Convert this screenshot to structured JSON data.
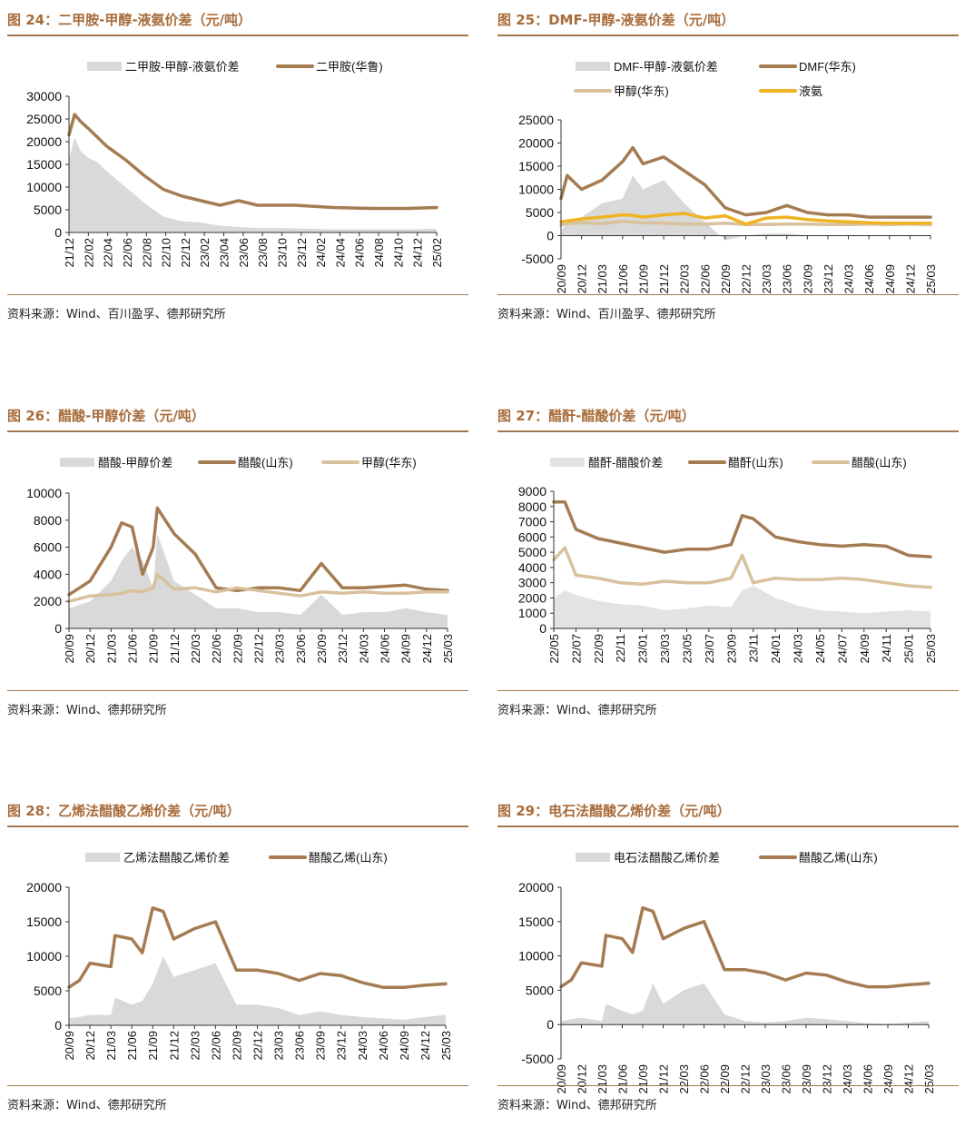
{
  "colors": {
    "title": "#a86c3a",
    "rule": "#a0774f",
    "area": "#d9d9d9",
    "primary": "#a57c52",
    "secondary": "#d8c19c",
    "ammonia": "#f0b323"
  },
  "figures": [
    {
      "title": "图 24：二甲胺-甲醇-液氨价差（元/吨）",
      "source": "资料来源：Wind、百川盈孚、德邦研究所",
      "chart_data": {
        "type": "line",
        "y_ticks": [
          "30000",
          "25000",
          "20000",
          "15000",
          "10000",
          "5000",
          "0"
        ],
        "ylim": [
          0,
          30000
        ],
        "x_ticks": [
          "21/12",
          "22/02",
          "22/04",
          "22/06",
          "22/08",
          "22/10",
          "22/12",
          "23/02",
          "23/04",
          "23/06",
          "23/08",
          "23/10",
          "23/12",
          "24/02",
          "24/04",
          "24/06",
          "24/08",
          "24/10",
          "24/12",
          "25/02"
        ],
        "x": [
          0,
          0.3,
          0.6,
          1,
          1.5,
          2,
          3,
          4,
          5,
          6,
          7,
          8,
          9,
          10,
          11,
          12,
          14,
          16,
          18,
          19.5
        ],
        "series": [
          {
            "name": "二甲胺-甲醇-液氨价差",
            "kind": "area",
            "color": "#d9d9d9",
            "values": [
              16000,
              21000,
              18000,
              16500,
              15500,
              13500,
              10000,
              6500,
              3500,
              2500,
              2200,
              1500,
              1200,
              1000,
              1000,
              900,
              700,
              700,
              700,
              800
            ]
          },
          {
            "name": "二甲胺(华鲁)",
            "kind": "line",
            "color": "#a57c52",
            "values": [
              21500,
              26000,
              24500,
              23000,
              21000,
              19000,
              16000,
              12500,
              9500,
              8000,
              7000,
              6000,
              7000,
              6000,
              6000,
              6000,
              5500,
              5300,
              5300,
              5500
            ]
          }
        ]
      }
    },
    {
      "title": "图 25：DMF-甲醇-液氨价差（元/吨）",
      "source": "资料来源：Wind、百川盈孚、德邦研究所",
      "chart_data": {
        "type": "line",
        "y_ticks": [
          "25000",
          "20000",
          "15000",
          "10000",
          "5000",
          "0",
          "-5000"
        ],
        "ylim": [
          -5000,
          25000
        ],
        "x_ticks": [
          "20/09",
          "20/12",
          "21/03",
          "21/06",
          "21/09",
          "21/12",
          "22/03",
          "22/06",
          "22/09",
          "22/12",
          "23/03",
          "23/06",
          "23/09",
          "23/12",
          "24/03",
          "24/06",
          "24/09",
          "24/12",
          "25/03"
        ],
        "x": [
          0,
          0.3,
          1,
          2,
          3,
          3.5,
          4,
          5,
          6,
          7,
          8,
          9,
          10,
          11,
          12,
          13,
          14,
          15,
          16,
          17,
          18
        ],
        "series": [
          {
            "name": "DMF-甲醇-液氨价差",
            "kind": "area",
            "color": "#d9d9d9",
            "values": [
              1000,
              3000,
              4000,
              7000,
              8000,
              13000,
              10000,
              12000,
              7000,
              3000,
              -1000,
              0,
              500,
              500,
              0,
              0,
              0,
              0,
              0,
              0,
              0
            ]
          },
          {
            "name": "DMF(华东)",
            "kind": "line",
            "color": "#a57c52",
            "values": [
              8000,
              13000,
              10000,
              12000,
              16000,
              19000,
              15500,
              17000,
              14000,
              11000,
              6000,
              4500,
              5000,
              6500,
              5000,
              4500,
              4500,
              4000,
              4000,
              4000,
              4000
            ]
          },
          {
            "name": "甲醇(华东)",
            "kind": "line",
            "color": "#d8c19c",
            "values": [
              2300,
              2600,
              2800,
              2600,
              3100,
              2900,
              2800,
              2700,
              2500,
              2500,
              2700,
              2400,
              2400,
              2500,
              2500,
              2400,
              2400,
              2500,
              2400,
              2500,
              2400
            ]
          },
          {
            "name": "液氨",
            "kind": "line",
            "color": "#f0b323",
            "values": [
              3000,
              3200,
              3600,
              4000,
              4500,
              4400,
              4000,
              4500,
              4800,
              3800,
              4300,
              2500,
              3800,
              4000,
              3500,
              3200,
              3000,
              2800,
              2700,
              2700,
              2700
            ]
          }
        ]
      }
    },
    {
      "title": "图 26：醋酸-甲醇价差（元/吨）",
      "source": "资料来源：Wind、德邦研究所",
      "chart_data": {
        "type": "line",
        "y_ticks": [
          "10000",
          "8000",
          "6000",
          "4000",
          "2000",
          "0"
        ],
        "ylim": [
          0,
          10000
        ],
        "x_ticks": [
          "20/09",
          "20/12",
          "21/03",
          "21/06",
          "21/09",
          "21/12",
          "22/03",
          "22/06",
          "22/09",
          "22/12",
          "23/03",
          "23/06",
          "23/09",
          "23/12",
          "24/03",
          "24/06",
          "24/09",
          "24/12",
          "25/03"
        ],
        "x": [
          0,
          1,
          2,
          2.5,
          3,
          3.5,
          4,
          4.2,
          5,
          6,
          7,
          8,
          9,
          10,
          11,
          12,
          13,
          14,
          15,
          16,
          17,
          18
        ],
        "series": [
          {
            "name": "醋酸-甲醇价差",
            "kind": "area",
            "color": "#d9d9d9",
            "values": [
              1500,
              2000,
              3500,
              5000,
              6000,
              5000,
              3000,
              7000,
              3500,
              2500,
              1500,
              1500,
              1200,
              1200,
              1000,
              2500,
              1000,
              1200,
              1200,
              1500,
              1200,
              1000
            ]
          },
          {
            "name": "醋酸(山东)",
            "kind": "line",
            "color": "#a57c52",
            "values": [
              2500,
              3500,
              6000,
              7800,
              7500,
              4000,
              6000,
              8900,
              7000,
              5500,
              3000,
              2800,
              3000,
              3000,
              2800,
              4800,
              3000,
              3000,
              3100,
              3200,
              2900,
              2800
            ]
          },
          {
            "name": "甲醇(华东)",
            "kind": "line",
            "color": "#d8c19c",
            "values": [
              2000,
              2400,
              2500,
              2600,
              2800,
              2700,
              3000,
              4000,
              2900,
              3000,
              2700,
              3000,
              2800,
              2600,
              2400,
              2700,
              2600,
              2700,
              2600,
              2600,
              2700,
              2700
            ]
          }
        ]
      }
    },
    {
      "title": "图 27：醋酐-醋酸价差（元/吨）",
      "source": "资料来源：Wind、德邦研究所",
      "chart_data": {
        "type": "line",
        "y_ticks": [
          "9000",
          "8000",
          "7000",
          "6000",
          "5000",
          "4000",
          "3000",
          "2000",
          "1000",
          "0"
        ],
        "ylim": [
          0,
          9000
        ],
        "x_ticks": [
          "22/05",
          "22/07",
          "22/09",
          "22/11",
          "23/01",
          "23/03",
          "23/05",
          "23/07",
          "23/09",
          "23/11",
          "24/01",
          "24/03",
          "24/05",
          "24/07",
          "24/09",
          "24/11",
          "25/01",
          "25/03"
        ],
        "x": [
          0,
          0.5,
          1,
          2,
          3,
          4,
          5,
          6,
          7,
          8,
          8.5,
          9,
          10,
          11,
          12,
          13,
          14,
          15,
          16,
          17
        ],
        "series": [
          {
            "name": "醋酐-醋酸价差",
            "kind": "area",
            "color": "#e3e3e3",
            "values": [
              2000,
              2500,
              2200,
              1800,
              1600,
              1500,
              1200,
              1300,
              1500,
              1400,
              2500,
              2800,
              2000,
              1500,
              1200,
              1100,
              1000,
              1100,
              1200,
              1100
            ]
          },
          {
            "name": "醋酐(山东)",
            "kind": "line",
            "color": "#a57c52",
            "values": [
              8300,
              8300,
              6500,
              5900,
              5600,
              5300,
              5000,
              5200,
              5200,
              5500,
              7400,
              7200,
              6000,
              5700,
              5500,
              5400,
              5500,
              5400,
              4800,
              4700
            ]
          },
          {
            "name": "醋酸(山东)",
            "kind": "line",
            "color": "#d8c19c",
            "values": [
              4500,
              5300,
              3500,
              3300,
              3000,
              2900,
              3100,
              3000,
              3000,
              3300,
              4800,
              3000,
              3300,
              3200,
              3200,
              3300,
              3200,
              3000,
              2800,
              2700
            ]
          }
        ]
      }
    },
    {
      "title": "图 28：乙烯法醋酸乙烯价差（元/吨）",
      "source": "资料来源：Wind、德邦研究所",
      "chart_data": {
        "type": "line",
        "y_ticks": [
          "20000",
          "15000",
          "10000",
          "5000",
          "0"
        ],
        "ylim": [
          0,
          20000
        ],
        "x_ticks": [
          "20/09",
          "20/12",
          "21/03",
          "21/06",
          "21/09",
          "21/12",
          "22/03",
          "22/06",
          "22/09",
          "22/12",
          "23/03",
          "23/06",
          "23/09",
          "23/12",
          "24/03",
          "24/06",
          "24/09",
          "24/12",
          "25/03"
        ],
        "x": [
          0,
          0.5,
          1,
          2,
          2.2,
          3,
          3.5,
          4,
          4.5,
          5,
          6,
          7,
          8,
          9,
          10,
          11,
          12,
          13,
          14,
          15,
          16,
          17,
          18
        ],
        "series": [
          {
            "name": "乙烯法醋酸乙烯价差",
            "kind": "area",
            "color": "#d9d9d9",
            "values": [
              1000,
              1200,
              1500,
              1500,
              4000,
              3000,
              3500,
              6000,
              10000,
              7000,
              8000,
              9000,
              3000,
              3000,
              2500,
              1500,
              2000,
              1500,
              1200,
              1000,
              800,
              1200,
              1500
            ]
          },
          {
            "name": "醋酸乙烯(山东)",
            "kind": "line",
            "color": "#a57c52",
            "values": [
              5500,
              6500,
              9000,
              8500,
              13000,
              12500,
              10500,
              17000,
              16500,
              12500,
              14000,
              15000,
              8000,
              8000,
              7500,
              6500,
              7500,
              7200,
              6200,
              5500,
              5500,
              5800,
              6000
            ]
          }
        ]
      }
    },
    {
      "title": "图 29：电石法醋酸乙烯价差（元/吨）",
      "source": "资料来源：Wind、德邦研究所",
      "chart_data": {
        "type": "line",
        "y_ticks": [
          "20000",
          "15000",
          "10000",
          "5000",
          "0",
          "-5000"
        ],
        "ylim": [
          -5000,
          20000
        ],
        "x_ticks": [
          "20/09",
          "20/12",
          "21/03",
          "21/06",
          "21/09",
          "21/12",
          "22/03",
          "22/06",
          "22/09",
          "22/12",
          "23/03",
          "23/06",
          "23/09",
          "23/12",
          "24/03",
          "24/06",
          "24/09",
          "24/12",
          "25/03"
        ],
        "x": [
          0,
          0.5,
          1,
          2,
          2.2,
          3,
          3.5,
          4,
          4.5,
          5,
          6,
          7,
          8,
          9,
          10,
          11,
          12,
          13,
          14,
          15,
          16,
          17,
          18
        ],
        "series": [
          {
            "name": "电石法醋酸乙烯价差",
            "kind": "area",
            "color": "#d9d9d9",
            "values": [
              500,
              800,
              1000,
              500,
              3000,
              2000,
              1500,
              2000,
              6000,
              3000,
              5000,
              6000,
              1500,
              500,
              300,
              500,
              1000,
              800,
              500,
              200,
              100,
              300,
              500
            ]
          },
          {
            "name": "醋酸乙烯(山东)",
            "kind": "line",
            "color": "#a57c52",
            "values": [
              5500,
              6500,
              9000,
              8500,
              13000,
              12500,
              10500,
              17000,
              16500,
              12500,
              14000,
              15000,
              8000,
              8000,
              7500,
              6500,
              7500,
              7200,
              6200,
              5500,
              5500,
              5800,
              6000
            ]
          }
        ]
      }
    }
  ]
}
